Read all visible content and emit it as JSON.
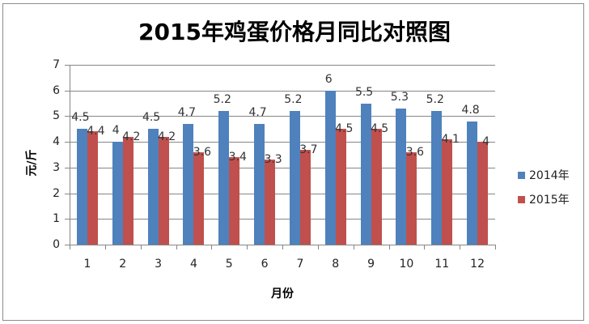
{
  "chart_data": {
    "type": "bar",
    "title": "2015年鸡蛋价格月同比对照图",
    "xlabel": "月份",
    "ylabel": "元/斤",
    "categories": [
      "1",
      "2",
      "3",
      "4",
      "5",
      "6",
      "7",
      "8",
      "9",
      "10",
      "11",
      "12"
    ],
    "series": [
      {
        "name": "2014年",
        "color": "#4f81bd",
        "values": [
          4.5,
          4,
          4.5,
          4.7,
          5.2,
          4.7,
          5.2,
          6,
          5.5,
          5.3,
          5.2,
          4.8
        ]
      },
      {
        "name": "2015年",
        "color": "#c0504d",
        "values": [
          4.4,
          4.2,
          4.2,
          3.6,
          3.4,
          3.3,
          3.7,
          4.5,
          4.5,
          3.6,
          4.1,
          4
        ]
      }
    ],
    "ylim": [
      0,
      7
    ],
    "yticks": [
      "0",
      "1",
      "2",
      "3",
      "4",
      "5",
      "6",
      "7"
    ],
    "grid": true,
    "legend_position": "right",
    "data_labels": true
  }
}
